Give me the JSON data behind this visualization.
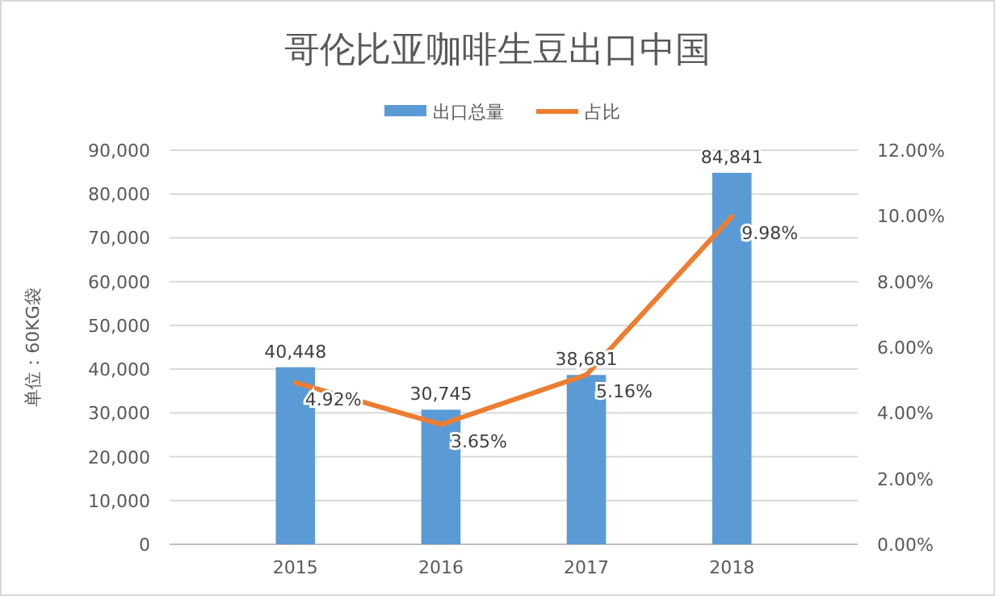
{
  "chart_data": {
    "type": "bar",
    "title": "哥伦比亚咖啡生豆出口中国",
    "ylabel": "单位：60KG袋",
    "categories": [
      "2015",
      "2016",
      "2017",
      "2018"
    ],
    "series": [
      {
        "name": "出口总量",
        "color": "#5b9bd5",
        "values": [
          40448,
          30745,
          38681,
          84841
        ],
        "value_labels": [
          "40,448",
          "30,745",
          "38,681",
          "84,841"
        ]
      },
      {
        "name": "占比",
        "type": "line",
        "axis": "y2",
        "color": "#ed7d31",
        "values": [
          4.92,
          3.65,
          5.16,
          9.98
        ],
        "value_labels": [
          "4.92%",
          "3.65%",
          "5.16%",
          "9.98%"
        ]
      }
    ],
    "ylim": [
      0,
      90000
    ],
    "yticks": [
      {
        "value": 0,
        "label": "0"
      },
      {
        "value": 10000,
        "label": "10,000"
      },
      {
        "value": 20000,
        "label": "20,000"
      },
      {
        "value": 30000,
        "label": "30,000"
      },
      {
        "value": 40000,
        "label": "40,000"
      },
      {
        "value": 50000,
        "label": "50,000"
      },
      {
        "value": 60000,
        "label": "60,000"
      },
      {
        "value": 70000,
        "label": "70,000"
      },
      {
        "value": 80000,
        "label": "80,000"
      },
      {
        "value": 90000,
        "label": "90,000"
      }
    ],
    "y2lim": [
      0,
      12
    ],
    "y2ticks": [
      {
        "value": 0,
        "label": "0.00%"
      },
      {
        "value": 2,
        "label": "2.00%"
      },
      {
        "value": 4,
        "label": "4.00%"
      },
      {
        "value": 6,
        "label": "6.00%"
      },
      {
        "value": 8,
        "label": "8.00%"
      },
      {
        "value": 10,
        "label": "10.00%"
      },
      {
        "value": 12,
        "label": "12.00%"
      }
    ],
    "grid": "y",
    "legend": "top",
    "marker": "none",
    "line_style": "solid"
  }
}
